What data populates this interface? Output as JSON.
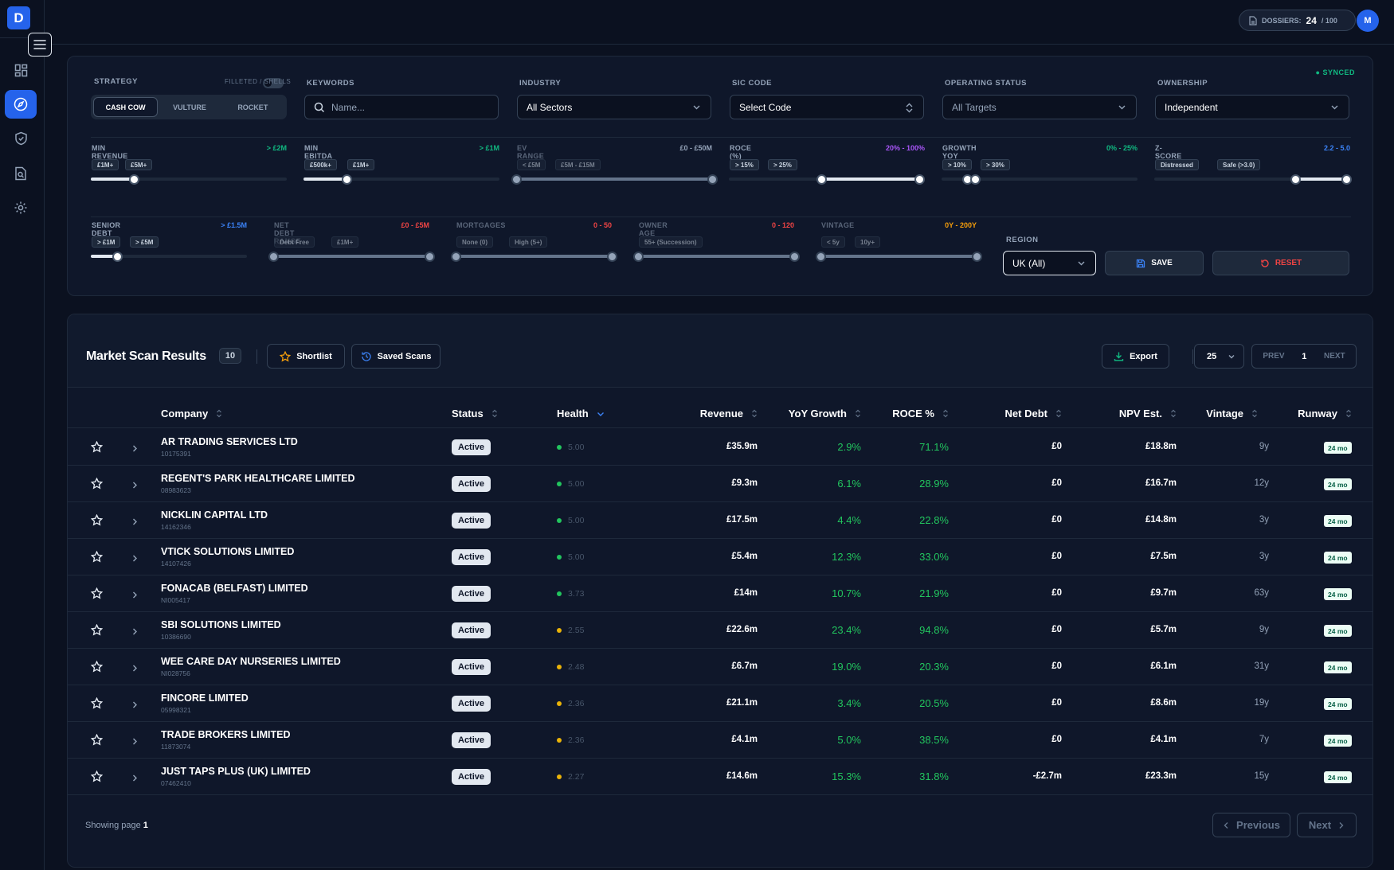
{
  "app": {
    "logo_letter": "D",
    "avatar_initial": "M"
  },
  "topbar": {
    "dossiers_label": "DOSSIERS:",
    "dossiers_used": "24",
    "dossiers_total": "/ 100"
  },
  "filters": {
    "synced": "● SYNCED",
    "strategy_label": "STRATEGY",
    "toggle_label": "FILLETED / SHELLS",
    "strategy_options": [
      "CASH COW",
      "VULTURE",
      "ROCKET"
    ],
    "keywords_label": "KEYWORDS",
    "keywords_placeholder": "Name...",
    "industry_label": "INDUSTRY",
    "industry_value": "All Sectors",
    "sic_label": "SIC CODE",
    "sic_value": "Select Code",
    "operating_label": "OPERATING STATUS",
    "operating_value": "All Targets",
    "ownership_label": "OWNERSHIP",
    "ownership_value": "Independent",
    "region_label": "REGION",
    "region_value": "UK (All)",
    "save_label": "SAVE",
    "reset_label": "RESET"
  },
  "sliders": [
    {
      "label": "MIN REVENUE",
      "value": "> £2M",
      "color": "#10b981",
      "chips": [
        "£1M+",
        "£5M+"
      ],
      "range": [
        0,
        0.22
      ],
      "dim": false
    },
    {
      "label": "MIN EBITDA",
      "value": "> £1M",
      "color": "#10b981",
      "chips": [
        "£500k+",
        "£1M+"
      ],
      "range": [
        0,
        0.22
      ],
      "dim": false
    },
    {
      "label": "EV RANGE",
      "value": "£0 - £50M",
      "color": "#94a3b8",
      "chips": [
        "< £5M",
        "£5M - £15M"
      ],
      "range": [
        0,
        1
      ],
      "dim": true
    },
    {
      "label": "ROCE (%)",
      "value": "20% - 100%",
      "color": "#a855f7",
      "chips": [
        "> 15%",
        "> 25%"
      ],
      "range": [
        0.47,
        0.97
      ],
      "dim": false
    },
    {
      "label": "GROWTH YOY",
      "value": "0% - 25%",
      "color": "#10b981",
      "chips": [
        "> 10%",
        "> 30%"
      ],
      "range": [
        0.13,
        0.17
      ],
      "dim": false
    },
    {
      "label": "Z-SCORE RANGE",
      "value": "2.2 - 5.0",
      "color": "#3b82f6",
      "chips": [
        "Distressed",
        "Safe (>3.0)"
      ],
      "range": [
        0.72,
        0.98
      ],
      "dim": false
    },
    {
      "label": "SENIOR DEBT CAP",
      "value": "> £1.5M",
      "color": "#3b82f6",
      "chips": [
        "> £1M",
        "> £5M"
      ],
      "range": [
        0,
        0.17
      ],
      "dim": false
    },
    {
      "label": "NET DEBT RANGE",
      "value": "£0 - £5M",
      "color": "#ef4444",
      "chips": [
        "Debt Free",
        "£1M+"
      ],
      "range": [
        0,
        1
      ],
      "dim": true
    },
    {
      "label": "MORTGAGES",
      "value": "0 - 50",
      "color": "#ef4444",
      "chips": [
        "None (0)",
        "High (5+)"
      ],
      "range": [
        0,
        1
      ],
      "dim": true
    },
    {
      "label": "OWNER AGE",
      "value": "0 - 120",
      "color": "#ef4444",
      "chips": [
        "55+ (Succession)"
      ],
      "range": [
        0,
        1
      ],
      "dim": true
    },
    {
      "label": "VINTAGE",
      "value": "0Y - 200Y",
      "color": "#f59e0b",
      "chips": [
        "< 5y",
        "10y+"
      ],
      "range": [
        0,
        1
      ],
      "dim": true
    }
  ],
  "results": {
    "title": "Market Scan Results",
    "count": "10",
    "shortlist_label": "Shortlist",
    "saved_label": "Saved Scans",
    "export_label": "Export",
    "page_size": "25",
    "prev_label": "PREV",
    "page": "1",
    "next_label": "NEXT",
    "columns": [
      "Company",
      "Status",
      "Health",
      "Revenue",
      "YoY Growth",
      "ROCE %",
      "Net Debt",
      "NPV Est.",
      "Vintage",
      "Runway"
    ],
    "rows": [
      {
        "name": "AR TRADING SERVICES LTD",
        "number": "10175391",
        "status": "Active",
        "health": "5.00",
        "hcolor": "#22c55e",
        "revenue": "£35.9m",
        "growth": "2.9%",
        "roce": "71.1%",
        "debt": "£0",
        "npv": "£18.8m",
        "vintage": "9y",
        "runway": "24 mo"
      },
      {
        "name": "REGENT'S PARK HEALTHCARE LIMITED",
        "number": "08983623",
        "status": "Active",
        "health": "5.00",
        "hcolor": "#22c55e",
        "revenue": "£9.3m",
        "growth": "6.1%",
        "roce": "28.9%",
        "debt": "£0",
        "npv": "£16.7m",
        "vintage": "12y",
        "runway": "24 mo"
      },
      {
        "name": "NICKLIN CAPITAL LTD",
        "number": "14162346",
        "status": "Active",
        "health": "5.00",
        "hcolor": "#22c55e",
        "revenue": "£17.5m",
        "growth": "4.4%",
        "roce": "22.8%",
        "debt": "£0",
        "npv": "£14.8m",
        "vintage": "3y",
        "runway": "24 mo"
      },
      {
        "name": "VTICK SOLUTIONS LIMITED",
        "number": "14107426",
        "status": "Active",
        "health": "5.00",
        "hcolor": "#22c55e",
        "revenue": "£5.4m",
        "growth": "12.3%",
        "roce": "33.0%",
        "debt": "£0",
        "npv": "£7.5m",
        "vintage": "3y",
        "runway": "24 mo"
      },
      {
        "name": "FONACAB (BELFAST) LIMITED",
        "number": "NI005417",
        "status": "Active",
        "health": "3.73",
        "hcolor": "#22c55e",
        "revenue": "£14m",
        "growth": "10.7%",
        "roce": "21.9%",
        "debt": "£0",
        "npv": "£9.7m",
        "vintage": "63y",
        "runway": "24 mo"
      },
      {
        "name": "SBI SOLUTIONS LIMITED",
        "number": "10386690",
        "status": "Active",
        "health": "2.55",
        "hcolor": "#eab308",
        "revenue": "£22.6m",
        "growth": "23.4%",
        "roce": "94.8%",
        "debt": "£0",
        "npv": "£5.7m",
        "vintage": "9y",
        "runway": "24 mo"
      },
      {
        "name": "WEE CARE DAY NURSERIES LIMITED",
        "number": "NI028756",
        "status": "Active",
        "health": "2.48",
        "hcolor": "#eab308",
        "revenue": "£6.7m",
        "growth": "19.0%",
        "roce": "20.3%",
        "debt": "£0",
        "npv": "£6.1m",
        "vintage": "31y",
        "runway": "24 mo"
      },
      {
        "name": "FINCORE LIMITED",
        "number": "05998321",
        "status": "Active",
        "health": "2.36",
        "hcolor": "#eab308",
        "revenue": "£21.1m",
        "growth": "3.4%",
        "roce": "20.5%",
        "debt": "£0",
        "npv": "£8.6m",
        "vintage": "19y",
        "runway": "24 mo"
      },
      {
        "name": "TRADE BROKERS LIMITED",
        "number": "11873074",
        "status": "Active",
        "health": "2.36",
        "hcolor": "#eab308",
        "revenue": "£4.1m",
        "growth": "5.0%",
        "roce": "38.5%",
        "debt": "£0",
        "npv": "£4.1m",
        "vintage": "7y",
        "runway": "24 mo"
      },
      {
        "name": "JUST TAPS PLUS (UK) LIMITED",
        "number": "07462410",
        "status": "Active",
        "health": "2.27",
        "hcolor": "#eab308",
        "revenue": "£14.6m",
        "growth": "15.3%",
        "roce": "31.8%",
        "debt": "-£2.7m",
        "npv": "£23.3m",
        "vintage": "15y",
        "runway": "24 mo"
      }
    ],
    "showing_label": "Showing page",
    "showing_page": "1",
    "previous_label": "Previous",
    "next_footer_label": "Next"
  }
}
